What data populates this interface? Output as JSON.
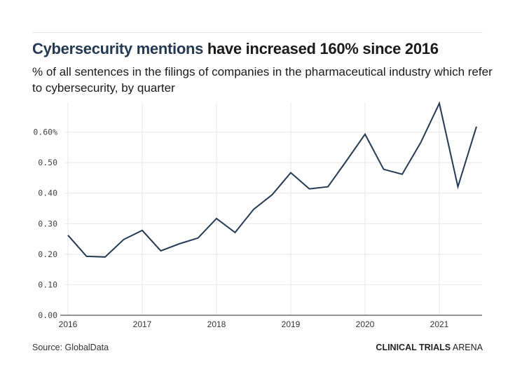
{
  "header": {
    "title_highlight": "Cybersecurity mentions",
    "title_rest": " have increased 160% since 2016",
    "subtitle": "% of all sentences in the filings of companies in the pharmaceutical industry which refer to cybersecurity, by quarter"
  },
  "footer": {
    "source": "Source: GlobalData",
    "brand_bold": "CLINICAL TRIALS",
    "brand_light": " ARENA"
  },
  "colors": {
    "line": "#253a52",
    "title_highlight": "#253a52",
    "grid": "#ebebeb"
  },
  "chart_data": {
    "type": "line",
    "title": "Cybersecurity mentions have increased 160% since 2016",
    "subtitle": "% of all sentences in the filings of companies in the pharmaceutical industry which refer to cybersecurity, by quarter",
    "xlabel": "",
    "ylabel": "",
    "x": [
      "2016 Q1",
      "2016 Q2",
      "2016 Q3",
      "2016 Q4",
      "2017 Q1",
      "2017 Q2",
      "2017 Q3",
      "2017 Q4",
      "2018 Q1",
      "2018 Q2",
      "2018 Q3",
      "2018 Q4",
      "2019 Q1",
      "2019 Q2",
      "2019 Q3",
      "2019 Q4",
      "2020 Q1",
      "2020 Q2",
      "2020 Q3",
      "2020 Q4",
      "2021 Q1",
      "2021 Q2",
      "2021 Q3"
    ],
    "series": [
      {
        "name": "Cybersecurity mentions (%)",
        "values": [
          0.262,
          0.193,
          0.191,
          0.248,
          0.278,
          0.211,
          0.234,
          0.253,
          0.317,
          0.271,
          0.347,
          0.395,
          0.467,
          0.414,
          0.421,
          0.506,
          0.593,
          0.478,
          0.462,
          0.566,
          0.694,
          0.421,
          0.618
        ]
      }
    ],
    "y_ticks": [
      {
        "value": 0.0,
        "label": "0.00"
      },
      {
        "value": 0.1,
        "label": "0.10"
      },
      {
        "value": 0.2,
        "label": "0.20"
      },
      {
        "value": 0.3,
        "label": "0.30"
      },
      {
        "value": 0.4,
        "label": "0.40"
      },
      {
        "value": 0.5,
        "label": "0.50"
      },
      {
        "value": 0.6,
        "label": "0.60%"
      }
    ],
    "x_ticks": [
      {
        "index": 0,
        "label": "2016"
      },
      {
        "index": 4,
        "label": "2017"
      },
      {
        "index": 8,
        "label": "2018"
      },
      {
        "index": 12,
        "label": "2019"
      },
      {
        "index": 16,
        "label": "2020"
      },
      {
        "index": 20,
        "label": "2021"
      }
    ],
    "ylim": [
      0,
      0.7
    ],
    "grid": true,
    "legend": "none",
    "source": "Source: GlobalData"
  }
}
